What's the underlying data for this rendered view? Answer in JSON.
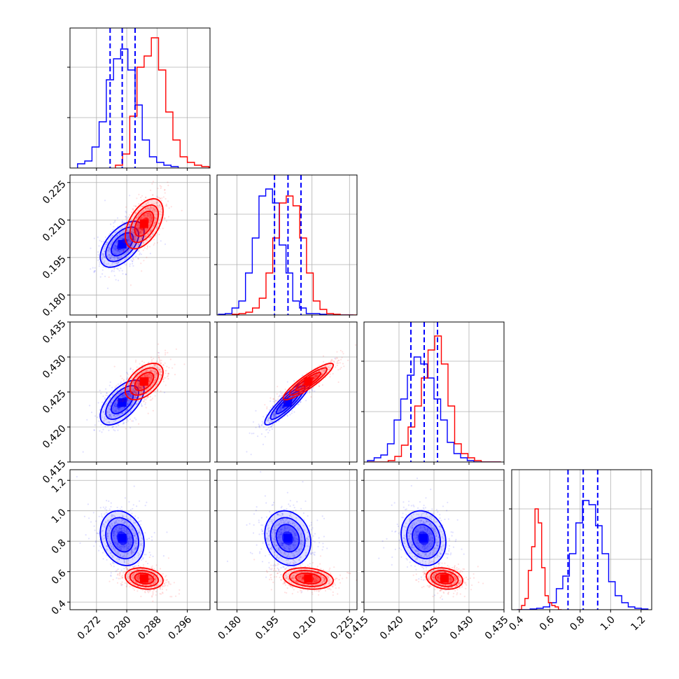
{
  "chart_data": {
    "type": "corner",
    "title": "",
    "parameters": [
      "",
      "",
      "",
      ""
    ],
    "colors": {
      "blue": "#0000ff",
      "red": "#ff0000"
    },
    "grid": true,
    "axes": [
      {
        "lim": [
          0.265,
          0.302
        ],
        "ticks": [
          "0.272",
          "0.280",
          "0.288",
          "0.296"
        ],
        "tick_values": [
          0.272,
          0.28,
          0.288,
          0.296
        ]
      },
      {
        "lim": [
          0.172,
          0.228
        ],
        "ticks": [
          "0.180",
          "0.195",
          "0.210",
          "0.225"
        ],
        "tick_values": [
          0.18,
          0.195,
          0.21,
          0.225
        ]
      },
      {
        "lim": [
          0.415,
          0.435
        ],
        "ticks": [
          "0.415",
          "0.420",
          "0.425",
          "0.430",
          "0.435"
        ],
        "tick_values": [
          0.415,
          0.42,
          0.425,
          0.43,
          0.435
        ]
      },
      {
        "lim": [
          0.35,
          1.27
        ],
        "ticks": [
          "0.4",
          "0.6",
          "0.8",
          "1.0",
          "1.2"
        ],
        "tick_values": [
          0.4,
          0.6,
          0.8,
          1.0,
          1.2
        ]
      }
    ],
    "marginals": [
      {
        "quantiles_blue": [
          0.2756,
          0.2788,
          0.2822
        ]
      },
      {
        "quantiles_blue": [
          0.195,
          0.2004,
          0.2056
        ]
      },
      {
        "quantiles_blue": [
          0.4217,
          0.4236,
          0.4255
        ]
      },
      {
        "quantiles_blue": [
          0.72,
          0.82,
          0.915
        ]
      }
    ],
    "series": [
      {
        "color": "#0000ff",
        "mean": [
          0.2788,
          0.2003,
          0.4235,
          0.82
        ],
        "std": [
          0.0029,
          0.0046,
          0.0016,
          0.09
        ],
        "corr": [
          [
            1,
            0.55,
            0.6,
            -0.2
          ],
          [
            0.55,
            1,
            0.9,
            -0.15
          ],
          [
            0.6,
            0.9,
            1,
            -0.15
          ],
          [
            -0.2,
            -0.15,
            -0.15,
            1
          ]
        ],
        "hist": [
          {
            "start": 0.267,
            "width": 0.0019,
            "values": [
              0.03,
              0.05,
              0.15,
              0.33,
              0.63,
              0.78,
              0.85,
              0.7,
              0.45,
              0.2,
              0.08,
              0.04,
              0.02,
              0.01
            ]
          },
          {
            "start": 0.1726,
            "width": 0.0027,
            "values": [
              0.005,
              0.01,
              0.05,
              0.1,
              0.3,
              0.55,
              0.85,
              0.9,
              0.8,
              0.5,
              0.3,
              0.1,
              0.05,
              0.01,
              0.01,
              0.005,
              0.0,
              0.0,
              0.0,
              0.0
            ]
          },
          {
            "start": 0.4155,
            "width": 0.00095,
            "values": [
              0.01,
              0.03,
              0.05,
              0.13,
              0.3,
              0.45,
              0.62,
              0.75,
              0.7,
              0.6,
              0.45,
              0.3,
              0.14,
              0.06,
              0.03,
              0.01,
              0.0,
              0.0,
              0.0,
              0.0
            ]
          },
          {
            "start": 0.385,
            "width": 0.043,
            "values": [
              0.0,
              0.0,
              0.005,
              0.01,
              0.02,
              0.05,
              0.15,
              0.24,
              0.4,
              0.62,
              0.78,
              0.75,
              0.6,
              0.4,
              0.2,
              0.1,
              0.05,
              0.02,
              0.01,
              0.005
            ]
          }
        ]
      },
      {
        "color": "#ff0000",
        "mean": [
          0.2846,
          0.2085,
          0.4265,
          0.555
        ],
        "std": [
          0.0025,
          0.005,
          0.0013,
          0.035
        ],
        "corr": [
          [
            1,
            0.5,
            0.5,
            -0.2
          ],
          [
            0.5,
            1,
            0.9,
            -0.2
          ],
          [
            0.5,
            0.9,
            1,
            -0.2
          ],
          [
            -0.2,
            -0.2,
            -0.2,
            1
          ]
        ],
        "hist": [
          {
            "start": 0.277,
            "width": 0.0019,
            "values": [
              0.02,
              0.1,
              0.37,
              0.72,
              0.8,
              0.93,
              0.7,
              0.4,
              0.2,
              0.08,
              0.04,
              0.02,
              0.01,
              0.005
            ]
          },
          {
            "start": 0.1781,
            "width": 0.0027,
            "values": [
              0.005,
              0.01,
              0.02,
              0.05,
              0.12,
              0.3,
              0.55,
              0.8,
              0.85,
              0.78,
              0.55,
              0.3,
              0.1,
              0.04,
              0.01,
              0.005,
              0.0,
              0.0,
              0.0,
              0.0
            ]
          },
          {
            "start": 0.4156,
            "width": 0.00095,
            "values": [
              0.0,
              0.0,
              0.0,
              0.01,
              0.04,
              0.12,
              0.25,
              0.4,
              0.6,
              0.8,
              0.9,
              0.7,
              0.4,
              0.13,
              0.06,
              0.03,
              0.01,
              0.0,
              0.0,
              0.0
            ]
          },
          {
            "start": 0.393,
            "width": 0.022,
            "values": [
              0.0,
              0.03,
              0.08,
              0.28,
              0.45,
              0.72,
              0.62,
              0.3,
              0.1,
              0.05,
              0.03,
              0.02,
              0.0
            ]
          }
        ]
      }
    ]
  }
}
